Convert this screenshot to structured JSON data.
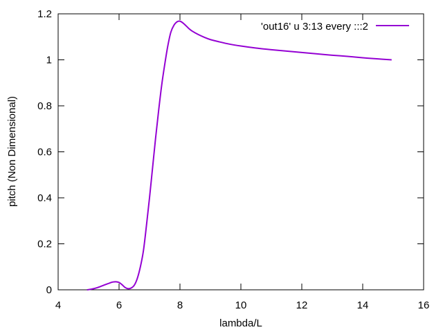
{
  "chart_data": {
    "type": "line",
    "title": "",
    "xlabel": "lambda/L",
    "ylabel": "pitch (Non Dimensional)",
    "xlim": [
      4,
      16
    ],
    "ylim": [
      0,
      1.2
    ],
    "xticks": [
      4,
      6,
      8,
      10,
      12,
      14,
      16
    ],
    "yticks": [
      0,
      0.2,
      0.4,
      0.6,
      0.8,
      1,
      1.2
    ],
    "xtick_labels": [
      "4",
      "6",
      "8",
      "10",
      "12",
      "14",
      "16"
    ],
    "ytick_labels": [
      "0",
      "0.2",
      "0.4",
      "0.6",
      "0.8",
      "1",
      "1.2"
    ],
    "grid": false,
    "legend_position": "top-right",
    "series": [
      {
        "name": "'out16' u 3:13 every :::2",
        "color": "#9400d3",
        "x": [
          4.95,
          5.1,
          5.3,
          5.5,
          5.7,
          5.8,
          5.9,
          6.0,
          6.1,
          6.2,
          6.3,
          6.4,
          6.5,
          6.6,
          6.7,
          6.8,
          6.9,
          7.0,
          7.1,
          7.2,
          7.3,
          7.4,
          7.5,
          7.6,
          7.7,
          7.8,
          7.9,
          8.0,
          8.1,
          8.2,
          8.3,
          8.4,
          8.6,
          8.8,
          9.0,
          9.3,
          9.6,
          10.0,
          10.5,
          11.0,
          11.5,
          12.0,
          12.5,
          13.0,
          13.5,
          14.0,
          14.5,
          14.95
        ],
        "y": [
          0.0,
          0.003,
          0.01,
          0.02,
          0.03,
          0.034,
          0.035,
          0.032,
          0.022,
          0.01,
          0.005,
          0.008,
          0.02,
          0.05,
          0.1,
          0.17,
          0.28,
          0.4,
          0.53,
          0.66,
          0.78,
          0.89,
          0.98,
          1.06,
          1.12,
          1.15,
          1.165,
          1.168,
          1.16,
          1.148,
          1.135,
          1.125,
          1.11,
          1.098,
          1.088,
          1.078,
          1.069,
          1.06,
          1.051,
          1.044,
          1.038,
          1.032,
          1.026,
          1.02,
          1.015,
          1.009,
          1.004,
          1.0
        ]
      }
    ]
  }
}
